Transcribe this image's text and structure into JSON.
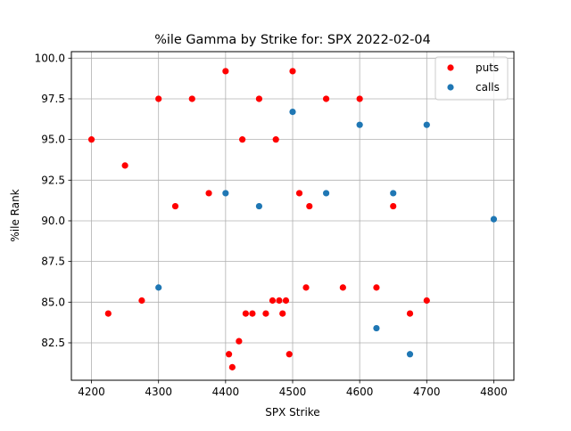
{
  "chart_data": {
    "type": "scatter",
    "title": "%ile Gamma by Strike for: SPX 2022-02-04",
    "xlabel": "SPX Strike",
    "ylabel": "%ile Rank",
    "xlim": [
      4170,
      4830
    ],
    "ylim": [
      80.2,
      100.4
    ],
    "xticks": [
      4200,
      4300,
      4400,
      4500,
      4600,
      4700,
      4800
    ],
    "yticks": [
      82.5,
      85.0,
      87.5,
      90.0,
      92.5,
      95.0,
      97.5,
      100.0
    ],
    "xtick_labels": [
      "4200",
      "4300",
      "4400",
      "4500",
      "4600",
      "4700",
      "4800"
    ],
    "ytick_labels": [
      "82.5",
      "85.0",
      "87.5",
      "90.0",
      "92.5",
      "95.0",
      "97.5",
      "100.0"
    ],
    "grid": true,
    "legend_position": "upper right",
    "series": [
      {
        "name": "puts",
        "color": "#ff0000",
        "points": [
          [
            4200,
            95.0
          ],
          [
            4225,
            84.3
          ],
          [
            4250,
            93.4
          ],
          [
            4275,
            85.1
          ],
          [
            4300,
            97.5
          ],
          [
            4325,
            90.9
          ],
          [
            4350,
            97.5
          ],
          [
            4375,
            91.7
          ],
          [
            4400,
            99.2
          ],
          [
            4405,
            81.8
          ],
          [
            4410,
            81.0
          ],
          [
            4420,
            82.6
          ],
          [
            4425,
            95.0
          ],
          [
            4430,
            84.3
          ],
          [
            4440,
            84.3
          ],
          [
            4450,
            97.5
          ],
          [
            4460,
            84.3
          ],
          [
            4470,
            85.1
          ],
          [
            4475,
            95.0
          ],
          [
            4480,
            85.1
          ],
          [
            4485,
            84.3
          ],
          [
            4490,
            85.1
          ],
          [
            4495,
            81.8
          ],
          [
            4500,
            99.2
          ],
          [
            4510,
            91.7
          ],
          [
            4520,
            85.9
          ],
          [
            4525,
            90.9
          ],
          [
            4550,
            97.5
          ],
          [
            4575,
            85.9
          ],
          [
            4600,
            97.5
          ],
          [
            4625,
            85.9
          ],
          [
            4650,
            90.9
          ],
          [
            4675,
            84.3
          ],
          [
            4700,
            85.1
          ]
        ]
      },
      {
        "name": "calls",
        "color": "#1f77b4",
        "points": [
          [
            4300,
            85.9
          ],
          [
            4400,
            91.7
          ],
          [
            4450,
            90.9
          ],
          [
            4500,
            96.7
          ],
          [
            4550,
            91.7
          ],
          [
            4600,
            95.9
          ],
          [
            4625,
            83.4
          ],
          [
            4650,
            91.7
          ],
          [
            4675,
            81.8
          ],
          [
            4700,
            95.9
          ],
          [
            4800,
            90.1
          ]
        ]
      }
    ]
  }
}
